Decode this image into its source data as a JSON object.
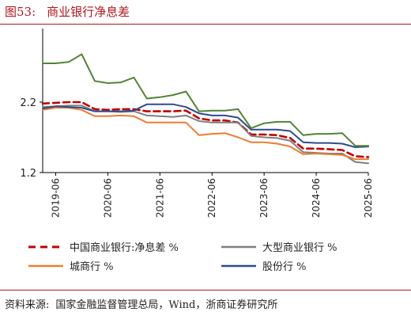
{
  "figure": {
    "label": "图53:",
    "title": "商业银行净息差"
  },
  "source": {
    "label": "资料来源:",
    "text": "国家金融监督管理总局，Wind，浙商证券研究所"
  },
  "colors": {
    "accent": "#b0181e"
  },
  "chart_data": {
    "type": "line",
    "title": "商业银行净息差",
    "xlabel": "",
    "ylabel": "",
    "ylim": [
      1.2,
      3.2
    ],
    "yticks": [
      1.2,
      2.2
    ],
    "grid": false,
    "legend_position": "bottom",
    "x": [
      "2019-03",
      "2019-06",
      "2019-09",
      "2019-12",
      "2020-03",
      "2020-06",
      "2020-09",
      "2020-12",
      "2021-03",
      "2021-06",
      "2021-09",
      "2021-12",
      "2022-03",
      "2022-06",
      "2022-09",
      "2022-12",
      "2023-03",
      "2023-06",
      "2023-09",
      "2023-12",
      "2024-03",
      "2024-06",
      "2024-09",
      "2024-12",
      "2025-03",
      "2025-06"
    ],
    "xticks": [
      "2019-06",
      "2019-10",
      "2020-02",
      "2020-06",
      "2020-10",
      "2021-02",
      "2021-06",
      "2021-10",
      "2022-02",
      "2022-06",
      "2022-10",
      "2023-02",
      "2023-06",
      "2023-10",
      "2024-02",
      "2024-06",
      "2024-10",
      "2025-02",
      "2025-06"
    ],
    "series": [
      {
        "name": "中国商业银行:净息差 %",
        "color": "#c00000",
        "dash": true,
        "values": [
          2.18,
          2.19,
          2.2,
          2.2,
          2.1,
          2.09,
          2.1,
          2.1,
          2.07,
          2.07,
          2.07,
          2.08,
          1.97,
          1.94,
          1.94,
          1.91,
          1.74,
          1.74,
          1.73,
          1.69,
          1.54,
          1.54,
          1.53,
          1.52,
          1.43,
          1.42
        ]
      },
      {
        "name": "大型商业银行 %",
        "color": "#7f7f7f",
        "dash": false,
        "values": [
          2.13,
          2.14,
          2.15,
          2.15,
          2.07,
          2.07,
          2.06,
          2.07,
          2.01,
          2.0,
          1.99,
          2.01,
          1.93,
          1.91,
          1.91,
          1.91,
          1.72,
          1.7,
          1.69,
          1.65,
          1.49,
          1.48,
          1.47,
          1.47,
          1.35,
          1.33
        ]
      },
      {
        "name": "城商行 %",
        "color": "#ed7d31",
        "dash": false,
        "values": [
          2.09,
          2.12,
          2.12,
          2.09,
          2.0,
          2.0,
          2.01,
          2.0,
          1.91,
          1.91,
          1.91,
          1.91,
          1.73,
          1.75,
          1.76,
          1.7,
          1.63,
          1.63,
          1.61,
          1.57,
          1.46,
          1.47,
          1.46,
          1.45,
          1.39,
          1.39
        ]
      },
      {
        "name": "股份行 %",
        "color": "#2f4b8f",
        "dash": false,
        "values": [
          2.11,
          2.14,
          2.13,
          2.12,
          2.07,
          2.07,
          2.07,
          2.08,
          2.17,
          2.17,
          2.17,
          2.13,
          2.04,
          2.01,
          2.01,
          1.98,
          1.81,
          1.81,
          1.81,
          1.79,
          1.63,
          1.62,
          1.62,
          1.61,
          1.56,
          1.57
        ]
      },
      {
        "name": "",
        "color": "#548235",
        "dash": false,
        "values": [
          2.75,
          2.75,
          2.77,
          2.88,
          2.5,
          2.47,
          2.48,
          2.55,
          2.25,
          2.27,
          2.3,
          2.35,
          2.07,
          2.08,
          2.08,
          2.1,
          1.83,
          1.9,
          1.92,
          1.92,
          1.73,
          1.75,
          1.75,
          1.76,
          1.58,
          1.58
        ]
      }
    ]
  }
}
